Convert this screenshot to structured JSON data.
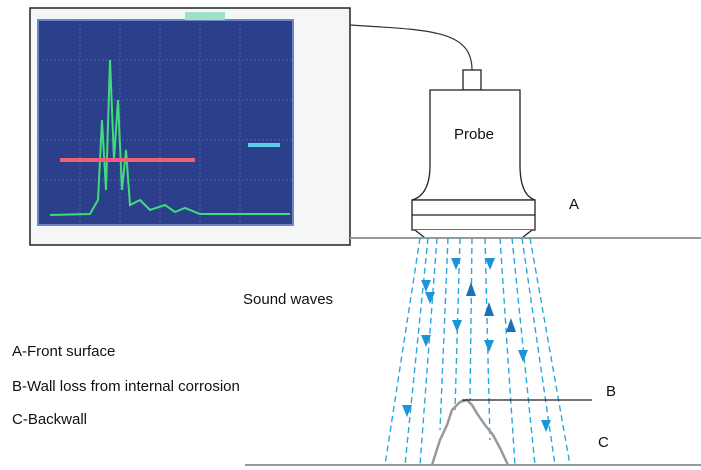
{
  "probe": {
    "label": "Probe"
  },
  "markers": {
    "a": "A",
    "b": "B",
    "c": "C"
  },
  "sound_waves": "Sound waves",
  "legend": [
    "A-Front surface",
    "B-Wall loss from internal corrosion",
    "C-Backwall"
  ]
}
